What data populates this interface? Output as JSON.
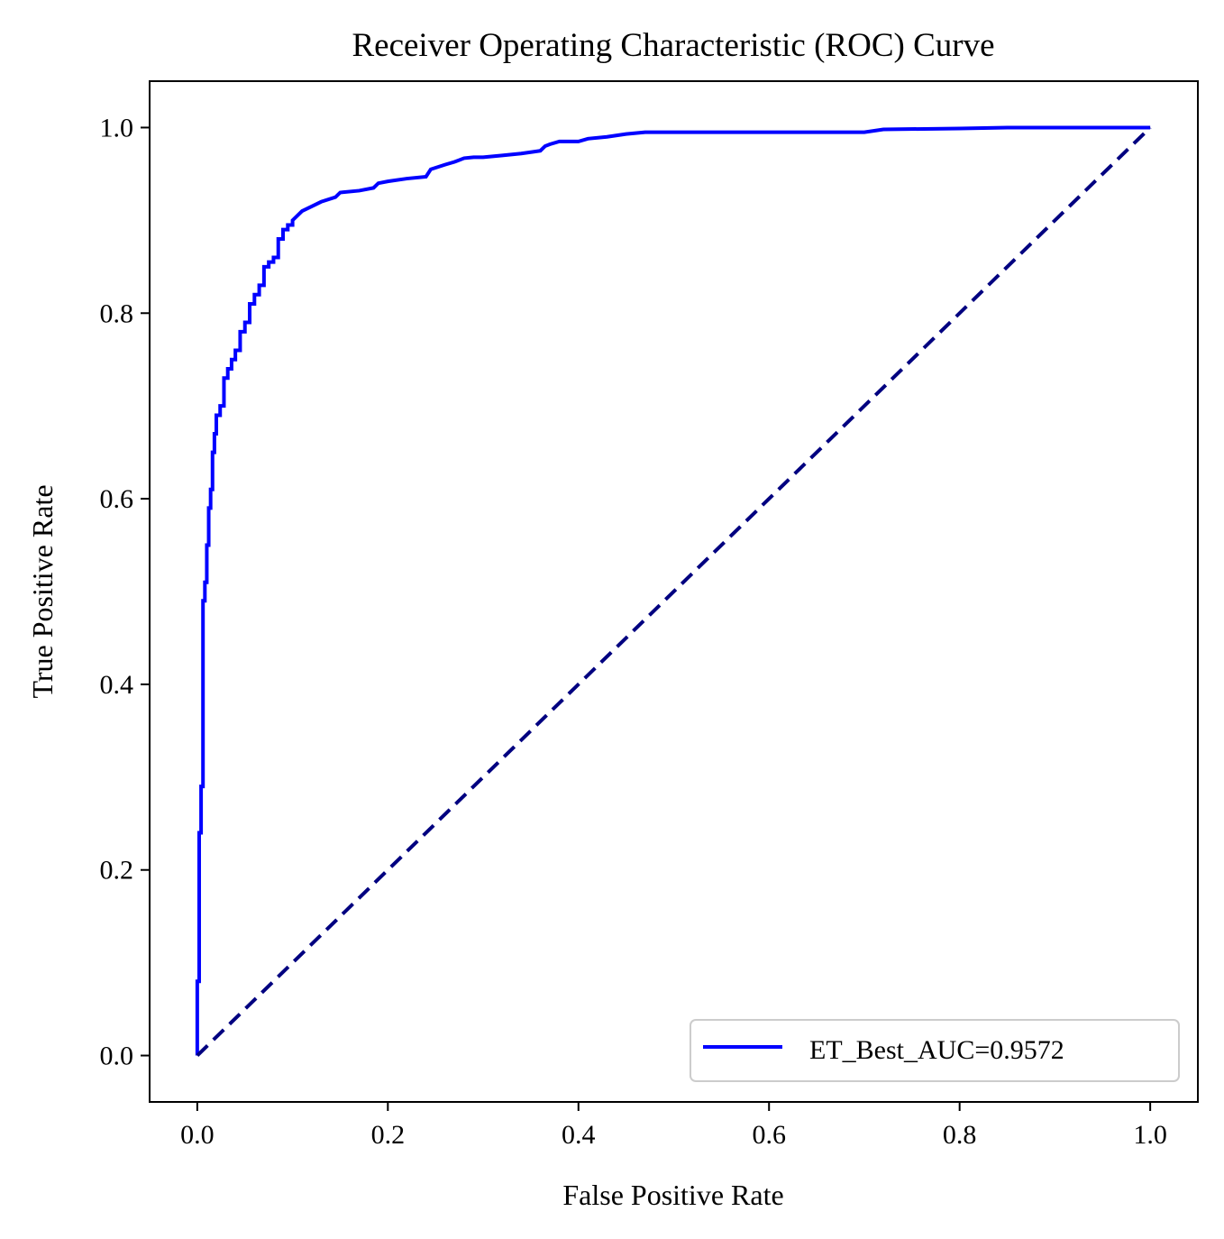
{
  "chart_data": {
    "type": "line",
    "title": "Receiver Operating Characteristic (ROC) Curve",
    "xlabel": "False Positive Rate",
    "ylabel": "True Positive Rate",
    "xlim": [
      -0.05,
      1.05
    ],
    "ylim": [
      -0.05,
      1.05
    ],
    "grid": false,
    "legend_position": "lower-right",
    "x_ticks": [
      "0.0",
      "0.2",
      "0.4",
      "0.6",
      "0.8",
      "1.0"
    ],
    "y_ticks": [
      "0.0",
      "0.2",
      "0.4",
      "0.6",
      "0.8",
      "1.0"
    ],
    "series": [
      {
        "name": "ET_Best_AUC=0.9572",
        "color": "#0000ff",
        "style": "solid",
        "x": [
          0,
          0,
          0.002,
          0.002,
          0.004,
          0.004,
          0.006,
          0.006,
          0.008,
          0.008,
          0.01,
          0.01,
          0.012,
          0.012,
          0.014,
          0.014,
          0.016,
          0.016,
          0.018,
          0.018,
          0.02,
          0.02,
          0.024,
          0.024,
          0.028,
          0.028,
          0.032,
          0.032,
          0.036,
          0.036,
          0.04,
          0.04,
          0.045,
          0.045,
          0.05,
          0.05,
          0.055,
          0.055,
          0.06,
          0.06,
          0.065,
          0.065,
          0.07,
          0.07,
          0.075,
          0.075,
          0.08,
          0.08,
          0.085,
          0.085,
          0.09,
          0.09,
          0.095,
          0.095,
          0.1,
          0.1,
          0.105,
          0.11,
          0.12,
          0.13,
          0.145,
          0.15,
          0.17,
          0.185,
          0.19,
          0.2,
          0.22,
          0.24,
          0.245,
          0.26,
          0.27,
          0.28,
          0.29,
          0.3,
          0.32,
          0.34,
          0.36,
          0.365,
          0.37,
          0.38,
          0.4,
          0.41,
          0.43,
          0.45,
          0.47,
          0.5,
          0.6,
          0.7,
          0.72,
          0.8,
          0.85,
          0.9,
          1.0
        ],
        "y": [
          0,
          0.08,
          0.08,
          0.24,
          0.24,
          0.29,
          0.29,
          0.49,
          0.49,
          0.51,
          0.51,
          0.55,
          0.55,
          0.59,
          0.59,
          0.61,
          0.61,
          0.65,
          0.65,
          0.67,
          0.67,
          0.69,
          0.69,
          0.7,
          0.7,
          0.73,
          0.73,
          0.74,
          0.74,
          0.75,
          0.75,
          0.76,
          0.76,
          0.78,
          0.78,
          0.79,
          0.79,
          0.81,
          0.81,
          0.82,
          0.82,
          0.83,
          0.83,
          0.85,
          0.85,
          0.855,
          0.855,
          0.86,
          0.86,
          0.88,
          0.88,
          0.89,
          0.89,
          0.895,
          0.895,
          0.9,
          0.905,
          0.91,
          0.915,
          0.92,
          0.925,
          0.93,
          0.932,
          0.935,
          0.94,
          0.942,
          0.945,
          0.947,
          0.955,
          0.96,
          0.963,
          0.967,
          0.968,
          0.968,
          0.97,
          0.972,
          0.975,
          0.98,
          0.982,
          0.985,
          0.985,
          0.988,
          0.99,
          0.993,
          0.995,
          0.995,
          0.995,
          0.995,
          0.998,
          0.999,
          1.0,
          1.0,
          1.0
        ]
      },
      {
        "name": "",
        "color": "#000080",
        "style": "dashed",
        "x": [
          0,
          1
        ],
        "y": [
          0,
          1
        ]
      }
    ]
  }
}
